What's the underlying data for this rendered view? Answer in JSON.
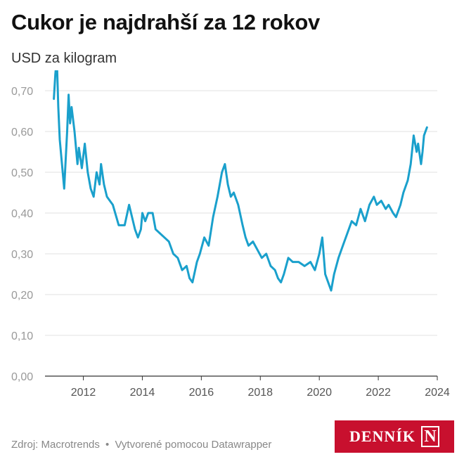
{
  "title": "Cukor je najdrahší za 12 rokov",
  "subtitle": "USD za kilogram",
  "footer": {
    "source": "Zdroj: Macrotrends",
    "separator": "•",
    "credit": "Vytvorené pomocou Datawrapper"
  },
  "logo": {
    "text": "DENNÍK",
    "mark": "N"
  },
  "colors": {
    "line": "#1aa0cc",
    "grid": "#e2e2e2",
    "axis": "#333333",
    "tick_text": "#999999",
    "logo_bg": "#c8102e"
  },
  "chart_data": {
    "type": "line",
    "title": "Cukor je najdrahší za 12 rokov",
    "ylabel": "USD za kilogram",
    "xlim": [
      2010.7,
      2024.0
    ],
    "ylim": [
      0,
      0.75
    ],
    "y_ticks": [
      0.0,
      0.1,
      0.2,
      0.3,
      0.4,
      0.5,
      0.6,
      0.7
    ],
    "y_tick_labels": [
      "0,00",
      "0,10",
      "0,20",
      "0,30",
      "0,40",
      "0,50",
      "0,60",
      "0,70"
    ],
    "x_ticks": [
      2012,
      2014,
      2016,
      2018,
      2020,
      2022,
      2024
    ],
    "x_tick_labels": [
      "2012",
      "2014",
      "2016",
      "2018",
      "2020",
      "2022",
      "2024"
    ],
    "grid": true,
    "series": [
      {
        "x": [
          2011.0,
          2011.05,
          2011.1,
          2011.15,
          2011.2,
          2011.3,
          2011.35,
          2011.45,
          2011.5,
          2011.55,
          2011.6,
          2011.7,
          2011.8,
          2011.85,
          2011.95,
          2012.05,
          2012.15,
          2012.25,
          2012.35,
          2012.45,
          2012.55,
          2012.6,
          2012.7,
          2012.8,
          2012.9,
          2013.0,
          2013.2,
          2013.4,
          2013.55,
          2013.75,
          2013.85,
          2013.95,
          2014.0,
          2014.1,
          2014.2,
          2014.35,
          2014.45,
          2014.6,
          2014.75,
          2014.9,
          2015.05,
          2015.2,
          2015.35,
          2015.5,
          2015.6,
          2015.7,
          2015.85,
          2015.95,
          2016.1,
          2016.25,
          2016.4,
          2016.55,
          2016.7,
          2016.8,
          2016.9,
          2017.0,
          2017.1,
          2017.25,
          2017.4,
          2017.5,
          2017.6,
          2017.75,
          2017.9,
          2018.05,
          2018.2,
          2018.35,
          2018.5,
          2018.6,
          2018.7,
          2018.8,
          2018.95,
          2019.1,
          2019.3,
          2019.5,
          2019.7,
          2019.85,
          2020.0,
          2020.1,
          2020.2,
          2020.3,
          2020.4,
          2020.5,
          2020.65,
          2020.8,
          2020.95,
          2021.1,
          2021.25,
          2021.4,
          2021.55,
          2021.7,
          2021.85,
          2021.95,
          2022.1,
          2022.25,
          2022.35,
          2022.5,
          2022.6,
          2022.75,
          2022.85,
          2023.0,
          2023.1,
          2023.2,
          2023.3,
          2023.35,
          2023.45,
          2023.5,
          2023.55,
          2023.6,
          2023.65
        ],
        "y": [
          0.68,
          0.74,
          0.78,
          0.66,
          0.58,
          0.5,
          0.46,
          0.6,
          0.69,
          0.62,
          0.66,
          0.6,
          0.52,
          0.56,
          0.51,
          0.57,
          0.5,
          0.46,
          0.44,
          0.5,
          0.47,
          0.52,
          0.47,
          0.44,
          0.43,
          0.42,
          0.37,
          0.37,
          0.42,
          0.36,
          0.34,
          0.36,
          0.4,
          0.38,
          0.4,
          0.4,
          0.36,
          0.35,
          0.34,
          0.33,
          0.3,
          0.29,
          0.26,
          0.27,
          0.24,
          0.23,
          0.28,
          0.3,
          0.34,
          0.32,
          0.39,
          0.44,
          0.5,
          0.52,
          0.47,
          0.44,
          0.45,
          0.42,
          0.37,
          0.34,
          0.32,
          0.33,
          0.31,
          0.29,
          0.3,
          0.27,
          0.26,
          0.24,
          0.23,
          0.25,
          0.29,
          0.28,
          0.28,
          0.27,
          0.28,
          0.26,
          0.3,
          0.34,
          0.25,
          0.23,
          0.21,
          0.25,
          0.29,
          0.32,
          0.35,
          0.38,
          0.37,
          0.41,
          0.38,
          0.42,
          0.44,
          0.42,
          0.43,
          0.41,
          0.42,
          0.4,
          0.39,
          0.42,
          0.45,
          0.48,
          0.52,
          0.59,
          0.55,
          0.57,
          0.52,
          0.55,
          0.59,
          0.6,
          0.61
        ]
      }
    ]
  }
}
